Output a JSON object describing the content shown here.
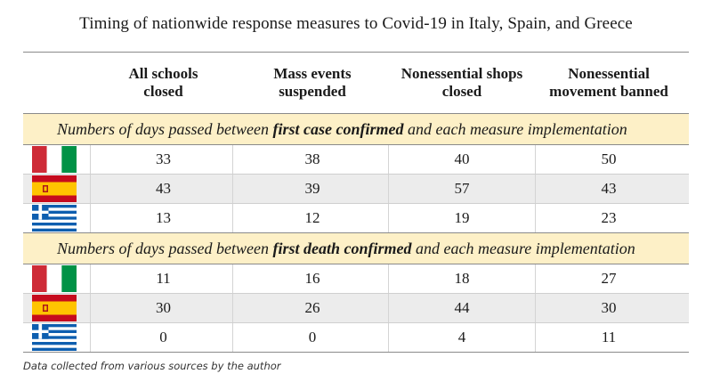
{
  "title": "Timing of nationwide response measures to Covid-19 in Italy, Spain, and Greece",
  "columns": [
    [
      "All schools",
      "closed"
    ],
    [
      "Mass events",
      "suspended"
    ],
    [
      "Nonessential shops",
      "closed"
    ],
    [
      "Nonessential",
      "movement banned"
    ]
  ],
  "sections": [
    {
      "pre": "Numbers of days passed between ",
      "bold": "first case confirmed",
      "post": " and each measure implementation",
      "rows": [
        {
          "flag": "italy-flag-icon",
          "values": [
            "33",
            "38",
            "40",
            "50"
          ]
        },
        {
          "flag": "spain-flag-icon",
          "values": [
            "43",
            "39",
            "57",
            "43"
          ]
        },
        {
          "flag": "greece-flag-icon",
          "values": [
            "13",
            "12",
            "19",
            "23"
          ]
        }
      ]
    },
    {
      "pre": "Numbers of days passed between ",
      "bold": "first death confirmed",
      "post": " and each measure implementation",
      "rows": [
        {
          "flag": "italy-flag-icon",
          "values": [
            "11",
            "16",
            "18",
            "27"
          ]
        },
        {
          "flag": "spain-flag-icon",
          "values": [
            "30",
            "26",
            "44",
            "30"
          ]
        },
        {
          "flag": "greece-flag-icon",
          "values": [
            "0",
            "0",
            "4",
            "11"
          ]
        }
      ]
    }
  ],
  "caption": "Data collected from various sources by the author",
  "colors": {
    "section_bg": "#fdf0c7",
    "alt_row_bg": "#ececec",
    "italy": [
      "#009246",
      "#ffffff",
      "#ce2b37"
    ],
    "spain": [
      "#c60b1e",
      "#ffc400"
    ],
    "greece": [
      "#0d5eaf",
      "#ffffff"
    ]
  }
}
